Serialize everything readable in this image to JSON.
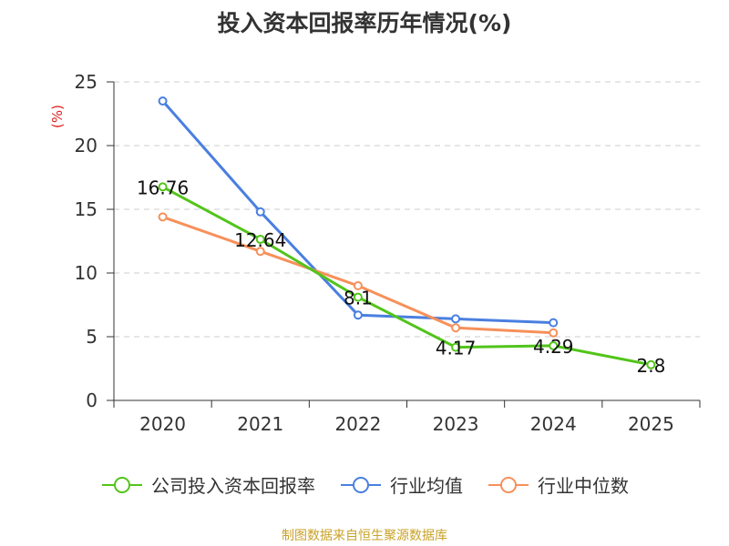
{
  "title": "投入资本回报率历年情况(%)",
  "source_note": "制图数据来自恒生聚源数据库",
  "colors": {
    "company": "#52c41a",
    "industry_avg": "#4a7fe0",
    "industry_median": "#f7905a",
    "axis": "#333333",
    "grid": "#cccccc",
    "ylabel": "#e02020",
    "source": "#c9a227"
  },
  "chart_data": {
    "type": "line",
    "title": "投入资本回报率历年情况(%)",
    "xlabel": "",
    "ylabel": "(%)",
    "categories": [
      "2020",
      "2021",
      "2022",
      "2023",
      "2024",
      "2025"
    ],
    "ylim": [
      0,
      25
    ],
    "yticks": [
      0,
      5,
      10,
      15,
      20,
      25
    ],
    "grid": true,
    "legend_position": "bottom",
    "series": [
      {
        "name": "公司投入资本回报率",
        "color": "#52c41a",
        "values": [
          16.76,
          12.64,
          8.1,
          4.17,
          4.29,
          2.8
        ],
        "labels": [
          "16.76",
          "12.64",
          "8.1",
          "4.17",
          "4.29",
          "2.8"
        ]
      },
      {
        "name": "行业均值",
        "color": "#4a7fe0",
        "values": [
          23.5,
          14.8,
          6.7,
          6.4,
          6.1,
          null
        ]
      },
      {
        "name": "行业中位数",
        "color": "#f7905a",
        "values": [
          14.4,
          11.7,
          9.0,
          5.7,
          5.3,
          null
        ]
      }
    ]
  }
}
